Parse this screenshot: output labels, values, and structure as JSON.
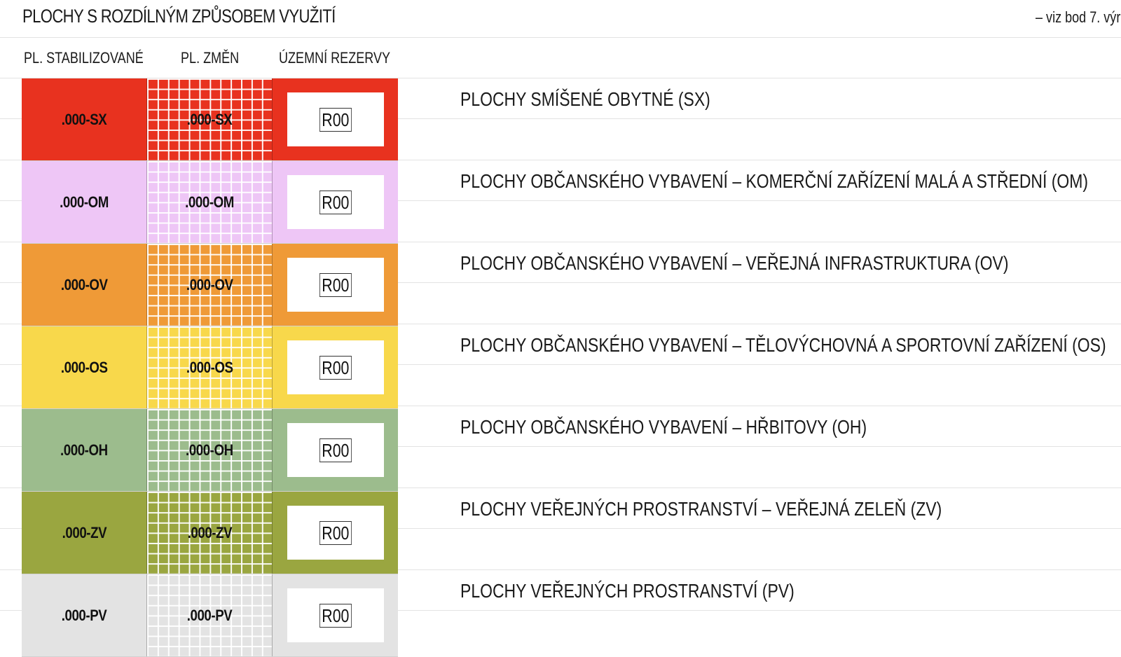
{
  "header": {
    "title": "PLOCHY S ROZDÍLNÝM ZPŮSOBEM VYUŽITÍ",
    "reference": "– viz bod 7. výr"
  },
  "columns": {
    "stabilized": "PL. STABILIZOVANÉ",
    "changes": "PL. ZMĚN",
    "reserves": "ÚZEMNÍ REZERVY"
  },
  "rows": [
    {
      "code": ".000-SX",
      "reserve": "R00",
      "description": "PLOCHY SMÍŠENÉ OBYTNÉ (SX)",
      "color": "#e8321f"
    },
    {
      "code": ".000-OM",
      "reserve": "R00",
      "description": "PLOCHY OBČANSKÉHO VYBAVENÍ – KOMERČNÍ ZAŘÍZENÍ MALÁ A STŘEDNÍ (OM)",
      "color": "#eec6f6"
    },
    {
      "code": ".000-OV",
      "reserve": "R00",
      "description": "PLOCHY OBČANSKÉHO VYBAVENÍ – VEŘEJNÁ INFRASTRUKTURA (OV)",
      "color": "#ef9a37"
    },
    {
      "code": ".000-OS",
      "reserve": "R00",
      "description": "PLOCHY OBČANSKÉHO VYBAVENÍ – TĚLOVÝCHOVNÁ A SPORTOVNÍ ZAŘÍZENÍ (OS)",
      "color": "#f8d84b"
    },
    {
      "code": ".000-OH",
      "reserve": "R00",
      "description": "PLOCHY OBČANSKÉHO VYBAVENÍ – HŘBITOVY (OH)",
      "color": "#9cbc8d"
    },
    {
      "code": ".000-ZV",
      "reserve": "R00",
      "description": "PLOCHY VEŘEJNÝCH PROSTRANSTVÍ – VEŘEJNÁ ZELEŇ (ZV)",
      "color": "#9aa640"
    },
    {
      "code": ".000-PV",
      "reserve": "R00",
      "description": "PLOCHY VEŘEJNÝCH PROSTRANSTVÍ (PV)",
      "color": "#e3e3e3"
    }
  ]
}
